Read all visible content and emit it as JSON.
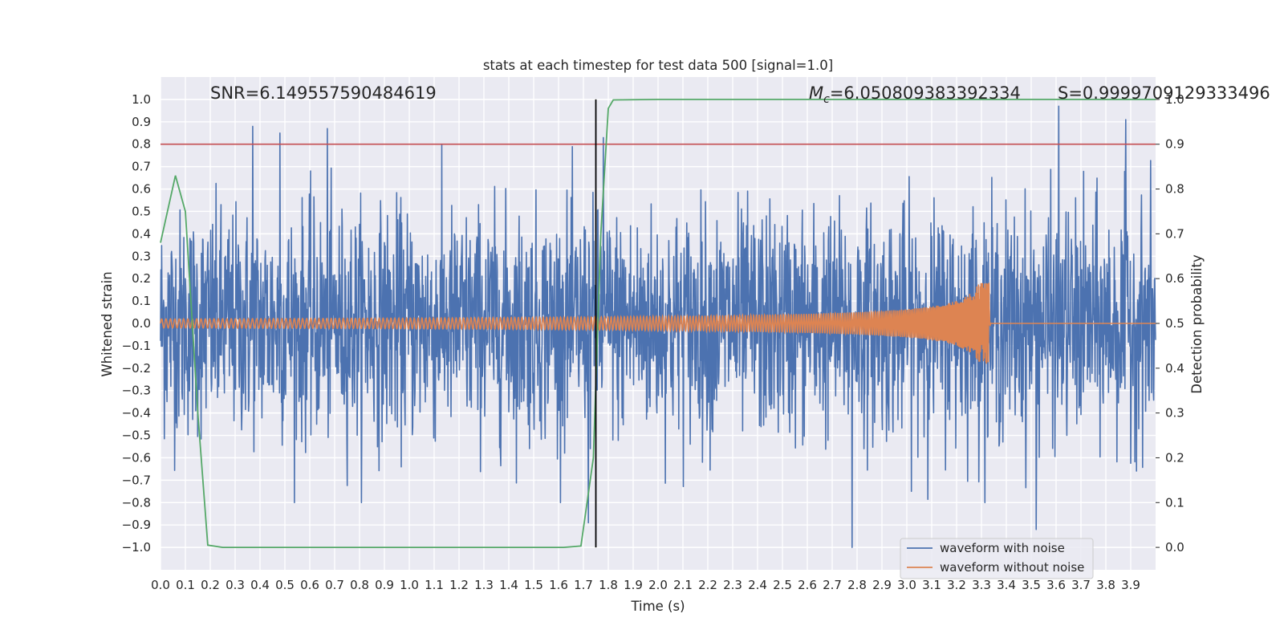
{
  "chart_data": {
    "type": "line",
    "title": "stats at each timestep for test data 500 [signal=1.0]",
    "xlabel": "Time (s)",
    "ylabel": "Whitened strain",
    "y2label": "Detection probability",
    "xlim": [
      0.0,
      4.0
    ],
    "ylim": [
      -1.1,
      1.1
    ],
    "y2lim": [
      -0.05,
      1.05
    ],
    "xticks": [
      "0.0",
      "0.1",
      "0.2",
      "0.3",
      "0.4",
      "0.5",
      "0.6",
      "0.7",
      "0.8",
      "0.9",
      "1.0",
      "1.1",
      "1.2",
      "1.3",
      "1.4",
      "1.5",
      "1.6",
      "1.7",
      "1.8",
      "1.9",
      "2.0",
      "2.1",
      "2.2",
      "2.3",
      "2.4",
      "2.5",
      "2.6",
      "2.7",
      "2.8",
      "2.9",
      "3.0",
      "3.1",
      "3.2",
      "3.3",
      "3.4",
      "3.5",
      "3.6",
      "3.7",
      "3.8",
      "3.9"
    ],
    "yticks": [
      "1.0",
      "0.9",
      "0.8",
      "0.7",
      "0.6",
      "0.5",
      "0.4",
      "0.3",
      "0.2",
      "0.1",
      "0.0",
      "−0.1",
      "−0.2",
      "−0.3",
      "−0.4",
      "−0.5",
      "−0.6",
      "−0.7",
      "−0.8",
      "−0.9",
      "−1.0"
    ],
    "y2ticks": [
      "1.0",
      "0.9",
      "0.8",
      "0.7",
      "0.6",
      "0.5",
      "0.4",
      "0.3",
      "0.2",
      "0.1",
      "0.0"
    ],
    "grid": true,
    "legend_position": "bottom-right",
    "annotations": {
      "snr": "SNR=6.149557590484619",
      "mc_symbol": "M",
      "mc_sub": "c",
      "mc_value": "=6.050809383392334",
      "s": "S=0.9999709129333496"
    },
    "series": [
      {
        "name": "waveform with noise",
        "axis": "left",
        "color": "#4c72b0",
        "noise_envelope_typical": 0.45,
        "notable_peaks": [
          {
            "x": 0.37,
            "y": 0.88
          },
          {
            "x": 0.48,
            "y": 0.85
          },
          {
            "x": 0.67,
            "y": 0.87
          },
          {
            "x": 1.72,
            "y": -0.89
          },
          {
            "x": 1.78,
            "y": 0.83
          },
          {
            "x": 2.78,
            "y": -1.0
          },
          {
            "x": 3.52,
            "y": -0.92
          },
          {
            "x": 3.61,
            "y": 0.97
          },
          {
            "x": 3.88,
            "y": 0.91
          }
        ]
      },
      {
        "name": "waveform without noise",
        "axis": "left",
        "color": "#dd8452",
        "amplitude_start": 0.02,
        "peak_time": 3.33,
        "peak_amplitude": 0.18,
        "end_time": 3.34
      },
      {
        "axis": "right",
        "color": "#55a868",
        "x": [
          0.0,
          0.06,
          0.1,
          0.15,
          0.19,
          0.25,
          0.5,
          1.0,
          1.5,
          1.62,
          1.69,
          1.74,
          1.77,
          1.8,
          1.82,
          2.0,
          3.0,
          4.0
        ],
        "y": [
          0.68,
          0.83,
          0.75,
          0.3,
          0.005,
          0.0,
          0.0,
          0.0,
          0.0,
          0.0,
          0.003,
          0.2,
          0.7,
          0.98,
          0.999,
          1.0,
          1.0,
          1.0
        ]
      }
    ],
    "threshold": {
      "axis": "right",
      "value": 0.9,
      "color": "#c44e52"
    },
    "vertical_marker": {
      "x": 1.75,
      "color": "#000000"
    }
  }
}
